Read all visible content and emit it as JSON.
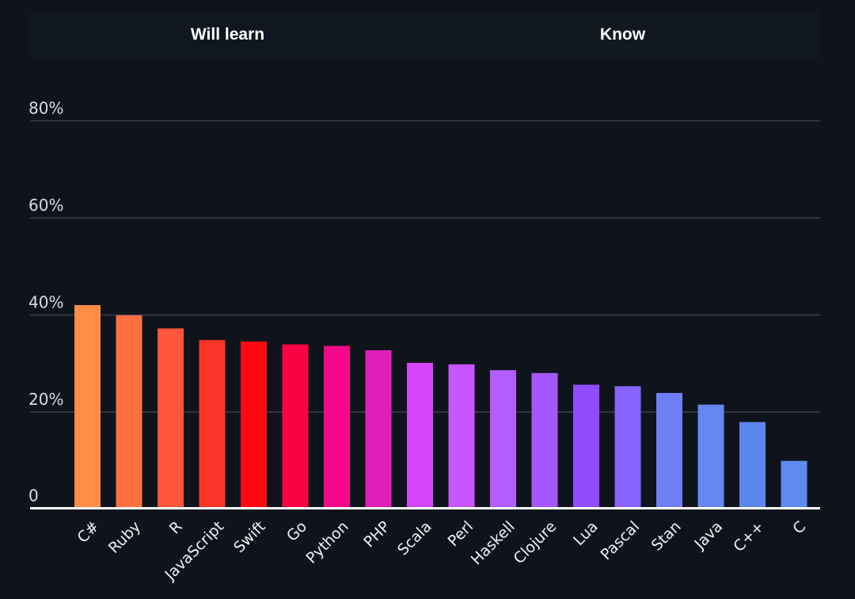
{
  "tabs": [
    {
      "label": "Will learn"
    },
    {
      "label": "Know"
    }
  ],
  "chart_data": {
    "type": "bar",
    "categories": [
      "C#",
      "Ruby",
      "R",
      "JavaScript",
      "Swift",
      "Go",
      "Python",
      "PHP",
      "Scala",
      "Perl",
      "Haskell",
      "Clojure",
      "Lua",
      "Pascal",
      "Stan",
      "Java",
      "C++",
      "C"
    ],
    "values": [
      41.7,
      39.6,
      36.9,
      34.5,
      34.2,
      33.6,
      33.3,
      32.4,
      29.8,
      29.5,
      28.3,
      27.7,
      25.3,
      25.0,
      23.6,
      21.2,
      17.6,
      9.6
    ],
    "colors": [
      "#ff8c47",
      "#ff7040",
      "#ff5538",
      "#fa3528",
      "#ff0a12",
      "#fb0343",
      "#f5098a",
      "#e01fb8",
      "#d645f8",
      "#c955ff",
      "#b35cff",
      "#a456ff",
      "#914bfd",
      "#8863fd",
      "#6e7ff5",
      "#6487f2",
      "#5c85ee",
      "#5f8af0"
    ],
    "yticks": [
      "0",
      "20%",
      "40%",
      "60%",
      "80%"
    ],
    "ytick_values": [
      0,
      20,
      40,
      60,
      80
    ],
    "ylim": [
      0,
      80
    ],
    "grid": true,
    "title": "",
    "xlabel": "",
    "ylabel": ""
  }
}
